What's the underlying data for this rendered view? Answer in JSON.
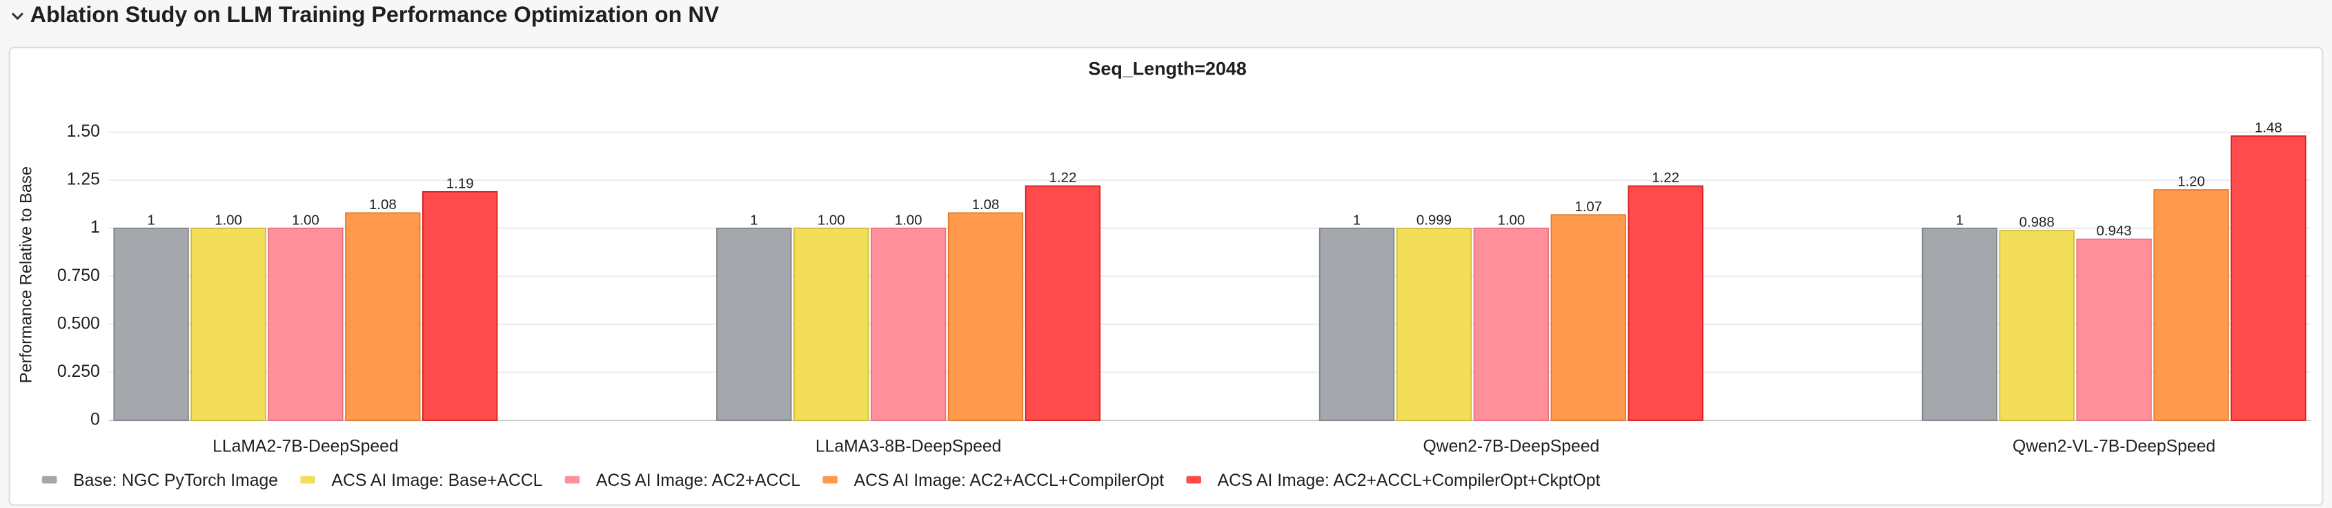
{
  "chart_data": {
    "type": "bar",
    "title": "Ablation Study on LLM Training Performance Optimization on NV",
    "subtitle": "Seq_Length=2048",
    "y_label": "Performance Relative to Base",
    "categories": [
      "LLaMA2-7B-DeepSpeed",
      "LLaMA3-8B-DeepSpeed",
      "Qwen2-7B-DeepSpeed",
      "Qwen2-VL-7B-DeepSpeed"
    ],
    "series": [
      {
        "name": "Base: NGC PyTorch Image",
        "color": "#a4a7ac",
        "values": [
          1,
          1,
          1,
          1
        ]
      },
      {
        "name": "ACS AI Image: Base+ACCL",
        "color": "#f2de58",
        "values": [
          1.0,
          1.0,
          0.999,
          0.988
        ],
        "value_labels": [
          "1.00",
          "1.00",
          "0.999",
          "0.988"
        ]
      },
      {
        "name": "ACS AI Image: AC2+ACCL",
        "color": "#ff8f9a",
        "values": [
          1.0,
          1.0,
          1.0,
          0.943
        ],
        "value_labels": [
          "1.00",
          "1.00",
          "1.00",
          "0.943"
        ]
      },
      {
        "name": "ACS AI Image: AC2+ACCL+CompilerOpt",
        "color": "#ff994c",
        "values": [
          1.08,
          1.08,
          1.07,
          1.2
        ],
        "value_labels": [
          "1.08",
          "1.08",
          "1.07",
          "1.20"
        ]
      },
      {
        "name": "ACS AI Image: AC2+ACCL+CompilerOpt+CkptOpt",
        "color": "#ff4b4b",
        "values": [
          1.19,
          1.22,
          1.22,
          1.48
        ],
        "value_labels": [
          "1.19",
          "1.22",
          "1.22",
          "1.48"
        ]
      }
    ],
    "ylim": [
      0,
      1.5
    ],
    "yticks": [
      0,
      {
        "value": 0.25,
        "label": "0.250"
      },
      {
        "value": 0.5,
        "label": "0.500"
      },
      {
        "value": 0.75,
        "label": "0.750"
      },
      1,
      {
        "value": 1.25,
        "label": "1.25"
      },
      {
        "value": 1.5,
        "label": "1.50"
      }
    ],
    "grid": true
  }
}
